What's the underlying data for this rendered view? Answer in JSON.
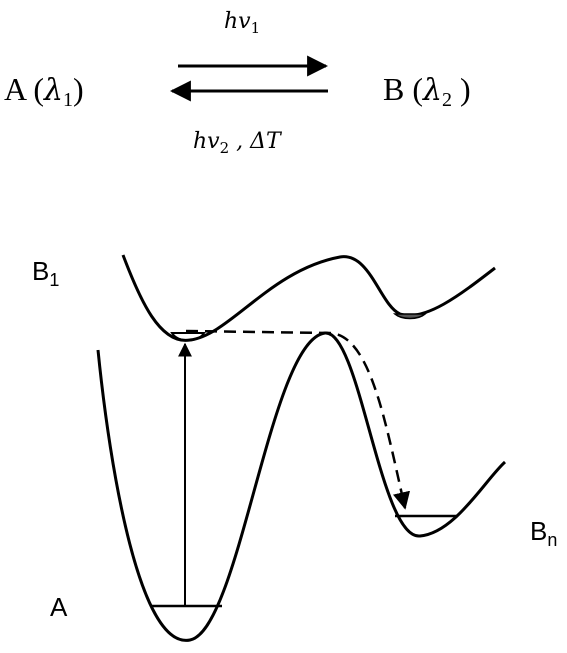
{
  "equation": {
    "reactant": {
      "text": "A (",
      "symbol": "λ",
      "sub": "1",
      "close": ")"
    },
    "product": {
      "text": "B (",
      "symbol": "λ",
      "sub": "2",
      "close": " )"
    },
    "forward": {
      "symbol": "hv",
      "sub": "1"
    },
    "reverse": {
      "symbol": "hv",
      "sub": "2",
      "suffix": " , ΔT"
    }
  },
  "diagram": {
    "upper_state": {
      "label": "B",
      "sub": "1"
    },
    "ground_state": {
      "label": "A"
    },
    "product_state": {
      "label": "B",
      "sub": "n"
    }
  }
}
